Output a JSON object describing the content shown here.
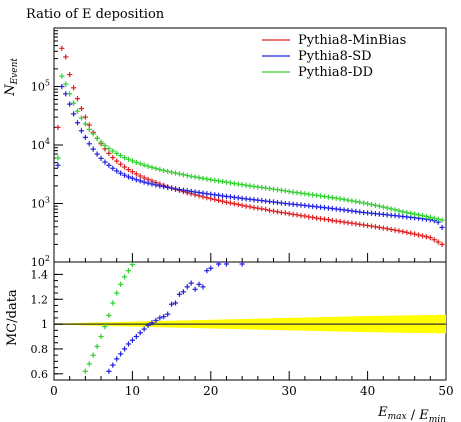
{
  "chart_data": {
    "type": "scatter",
    "title": "Ratio of E deposition",
    "xlabel": "E_max / E_min",
    "ylabel": "N_Event",
    "xlim": [
      0,
      50
    ],
    "ylim": [
      100,
      1000000
    ],
    "yscale": "log",
    "x_ticks": [
      "0",
      "10",
      "20",
      "30",
      "40",
      "50"
    ],
    "y_ticks": [
      "10^2",
      "10^3",
      "10^4",
      "10^5"
    ],
    "legend": {
      "placement": "top-right",
      "entries": [
        "Pythia8-MinBias",
        "Pythia8-SD",
        "Pythia8-DD"
      ]
    },
    "series": [
      {
        "name": "Pythia8-MinBias",
        "color": "#e02020",
        "x": [
          0.5,
          1,
          1.5,
          2,
          2.5,
          3,
          3.5,
          4,
          4.5,
          5,
          5.5,
          6,
          6.5,
          7,
          7.5,
          8,
          8.5,
          9,
          9.5,
          10,
          10.5,
          11,
          11.5,
          12,
          12.5,
          13,
          13.5,
          14,
          14.5,
          15,
          15.5,
          16,
          16.5,
          17,
          17.5,
          18,
          18.5,
          19,
          19.5,
          20,
          20.5,
          21,
          21.5,
          22,
          22.5,
          23,
          23.5,
          24,
          24.5,
          25,
          25.5,
          26,
          26.5,
          27,
          27.5,
          28,
          28.5,
          29,
          29.5,
          30,
          30.5,
          31,
          31.5,
          32,
          32.5,
          33,
          33.5,
          34,
          34.5,
          35,
          35.5,
          36,
          36.5,
          37,
          37.5,
          38,
          38.5,
          39,
          39.5,
          40,
          40.5,
          41,
          41.5,
          42,
          42.5,
          43,
          43.5,
          44,
          44.5,
          45,
          45.5,
          46,
          46.5,
          47,
          47.5,
          48,
          48.5,
          49,
          49.5
        ],
        "y": [
          20000,
          450000,
          320000,
          160000,
          95000,
          62000,
          42000,
          30000,
          22000,
          16500,
          13000,
          10500,
          8600,
          7200,
          6100,
          5300,
          4700,
          4200,
          3800,
          3500,
          3200,
          2950,
          2750,
          2580,
          2420,
          2280,
          2150,
          2040,
          1930,
          1840,
          1750,
          1680,
          1600,
          1530,
          1470,
          1410,
          1360,
          1300,
          1260,
          1210,
          1170,
          1130,
          1090,
          1050,
          1020,
          990,
          960,
          930,
          900,
          880,
          850,
          830,
          810,
          790,
          760,
          740,
          720,
          700,
          690,
          670,
          650,
          640,
          620,
          610,
          590,
          580,
          560,
          550,
          540,
          530,
          510,
          500,
          490,
          480,
          470,
          460,
          450,
          440,
          430,
          420,
          410,
          400,
          390,
          380,
          370,
          360,
          350,
          340,
          330,
          320,
          310,
          300,
          290,
          280,
          270,
          260,
          240,
          220,
          200
        ]
      },
      {
        "name": "Pythia8-SD",
        "color": "#2020e0",
        "x": [
          0.5,
          1,
          1.5,
          2,
          2.5,
          3,
          3.5,
          4,
          4.5,
          5,
          5.5,
          6,
          6.5,
          7,
          7.5,
          8,
          8.5,
          9,
          9.5,
          10,
          10.5,
          11,
          11.5,
          12,
          12.5,
          13,
          13.5,
          14,
          14.5,
          15,
          15.5,
          16,
          16.5,
          17,
          17.5,
          18,
          18.5,
          19,
          19.5,
          20,
          20.5,
          21,
          21.5,
          22,
          22.5,
          23,
          23.5,
          24,
          24.5,
          25,
          25.5,
          26,
          26.5,
          27,
          27.5,
          28,
          28.5,
          29,
          29.5,
          30,
          30.5,
          31,
          31.5,
          32,
          32.5,
          33,
          33.5,
          34,
          34.5,
          35,
          35.5,
          36,
          36.5,
          37,
          37.5,
          38,
          38.5,
          39,
          39.5,
          40,
          40.5,
          41,
          41.5,
          42,
          42.5,
          43,
          43.5,
          44,
          44.5,
          45,
          45.5,
          46,
          46.5,
          47,
          47.5,
          48,
          48.5,
          49,
          49.5
        ],
        "y": [
          4500,
          100000,
          75000,
          50000,
          34000,
          24000,
          17500,
          13500,
          10500,
          8500,
          7000,
          5900,
          5100,
          4500,
          4000,
          3600,
          3300,
          3050,
          2850,
          2700,
          2550,
          2430,
          2320,
          2230,
          2150,
          2070,
          2000,
          1940,
          1880,
          1830,
          1780,
          1730,
          1690,
          1650,
          1610,
          1570,
          1540,
          1500,
          1470,
          1440,
          1410,
          1380,
          1350,
          1320,
          1300,
          1270,
          1250,
          1220,
          1200,
          1180,
          1160,
          1140,
          1120,
          1100,
          1080,
          1060,
          1040,
          1020,
          1000,
          985,
          970,
          955,
          940,
          925,
          910,
          895,
          880,
          865,
          850,
          835,
          820,
          805,
          790,
          775,
          760,
          745,
          730,
          715,
          700,
          690,
          680,
          670,
          660,
          650,
          640,
          630,
          620,
          610,
          600,
          590,
          580,
          570,
          560,
          550,
          540,
          530,
          510,
          480,
          390
        ]
      },
      {
        "name": "Pythia8-DD",
        "color": "#30d030",
        "x": [
          0.5,
          1,
          1.5,
          2,
          2.5,
          3,
          3.5,
          4,
          4.5,
          5,
          5.5,
          6,
          6.5,
          7,
          7.5,
          8,
          8.5,
          9,
          9.5,
          10,
          10.5,
          11,
          11.5,
          12,
          12.5,
          13,
          13.5,
          14,
          14.5,
          15,
          15.5,
          16,
          16.5,
          17,
          17.5,
          18,
          18.5,
          19,
          19.5,
          20,
          20.5,
          21,
          21.5,
          22,
          22.5,
          23,
          23.5,
          24,
          24.5,
          25,
          25.5,
          26,
          26.5,
          27,
          27.5,
          28,
          28.5,
          29,
          29.5,
          30,
          30.5,
          31,
          31.5,
          32,
          32.5,
          33,
          33.5,
          34,
          34.5,
          35,
          35.5,
          36,
          36.5,
          37,
          37.5,
          38,
          38.5,
          39,
          39.5,
          40,
          40.5,
          41,
          41.5,
          42,
          42.5,
          43,
          43.5,
          44,
          44.5,
          45,
          45.5,
          46,
          46.5,
          47,
          47.5,
          48,
          48.5,
          49,
          49.5
        ],
        "y": [
          6000,
          150000,
          110000,
          75000,
          52000,
          38000,
          29000,
          23000,
          18500,
          15500,
          13000,
          11200,
          9800,
          8700,
          7900,
          7200,
          6600,
          6100,
          5700,
          5350,
          5050,
          4780,
          4540,
          4330,
          4140,
          3970,
          3810,
          3670,
          3540,
          3420,
          3310,
          3200,
          3100,
          3010,
          2920,
          2840,
          2760,
          2690,
          2620,
          2550,
          2490,
          2430,
          2370,
          2310,
          2260,
          2200,
          2150,
          2100,
          2050,
          2000,
          1960,
          1920,
          1880,
          1840,
          1800,
          1760,
          1720,
          1680,
          1640,
          1600,
          1560,
          1530,
          1500,
          1470,
          1440,
          1410,
          1380,
          1350,
          1320,
          1290,
          1260,
          1230,
          1200,
          1170,
          1140,
          1110,
          1080,
          1050,
          1020,
          990,
          960,
          930,
          900,
          870,
          840,
          810,
          780,
          750,
          720,
          700,
          680,
          660,
          640,
          620,
          600,
          580,
          560,
          540,
          520
        ]
      }
    ]
  },
  "ratio_panel": {
    "ylabel": "MC/data",
    "ylim": [
      0.55,
      1.5
    ],
    "y_ticks": [
      "0.6",
      "0.8",
      "1",
      "1.2",
      "1.4"
    ],
    "reference_line": 1,
    "band_color": "#ffff00",
    "band_halfwidth": {
      "x": [
        0,
        10,
        20,
        30,
        40,
        50
      ],
      "y": [
        0.005,
        0.02,
        0.035,
        0.05,
        0.065,
        0.075
      ]
    },
    "series": [
      {
        "name": "Pythia8-SD",
        "color": "#2020e0",
        "x": [
          6,
          6.5,
          7,
          7.5,
          8,
          8.5,
          9,
          9.5,
          10,
          10.5,
          11,
          11.5,
          12,
          12.5,
          13,
          13.5,
          14,
          14.5,
          15,
          15.5,
          16,
          16.5,
          17,
          17.5,
          18,
          18.5,
          19,
          19.5,
          20,
          21,
          22,
          24
        ],
        "y": [
          0.5,
          0.56,
          0.62,
          0.67,
          0.72,
          0.76,
          0.8,
          0.84,
          0.87,
          0.9,
          0.93,
          0.96,
          0.99,
          1.01,
          1.03,
          1.05,
          1.06,
          1.08,
          1.16,
          1.17,
          1.24,
          1.26,
          1.3,
          1.33,
          1.28,
          1.32,
          1.3,
          1.43,
          1.45,
          1.5,
          1.5,
          1.5
        ]
      },
      {
        "name": "Pythia8-DD",
        "color": "#30d030",
        "x": [
          3.5,
          4,
          4.5,
          5,
          5.5,
          6,
          6.5,
          7,
          7.5,
          8,
          8.5,
          9,
          9.5,
          10
        ],
        "y": [
          0.56,
          0.62,
          0.68,
          0.75,
          0.82,
          0.9,
          0.98,
          1.07,
          1.17,
          1.25,
          1.32,
          1.38,
          1.43,
          1.48
        ]
      }
    ]
  }
}
